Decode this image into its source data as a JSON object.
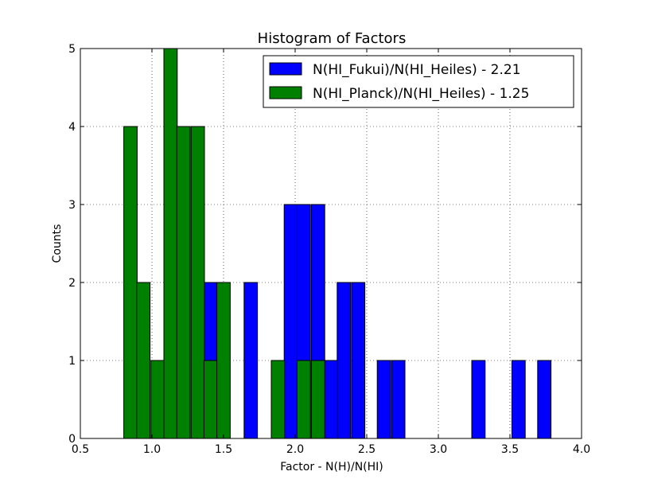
{
  "chart_data": {
    "type": "bar",
    "title": "Histogram of Factors",
    "xlabel": "Factor - N(H)/N(HI)",
    "ylabel": "Counts",
    "xlim": [
      0.5,
      4.0
    ],
    "ylim": [
      0,
      5
    ],
    "xticks": [
      "0.5",
      "1.0",
      "1.5",
      "2.0",
      "2.5",
      "3.0",
      "3.5",
      "4.0"
    ],
    "yticks": [
      "0",
      "1",
      "2",
      "3",
      "4",
      "5"
    ],
    "grid": true,
    "legend_position": "top-right",
    "bin_width": 0.0933,
    "series": [
      {
        "name": "N(HI_Fukui)/N(HI_Heiles) - 2.21",
        "color": "#0000ff",
        "bins": [
          {
            "x": 1.41,
            "count": 2
          },
          {
            "x": 1.69,
            "count": 2
          },
          {
            "x": 1.97,
            "count": 3
          },
          {
            "x": 2.06,
            "count": 3
          },
          {
            "x": 2.16,
            "count": 3
          },
          {
            "x": 2.25,
            "count": 1
          },
          {
            "x": 2.34,
            "count": 2
          },
          {
            "x": 2.44,
            "count": 2
          },
          {
            "x": 2.62,
            "count": 1
          },
          {
            "x": 2.72,
            "count": 1
          },
          {
            "x": 3.28,
            "count": 1
          },
          {
            "x": 3.56,
            "count": 1
          },
          {
            "x": 3.74,
            "count": 1
          }
        ]
      },
      {
        "name": "N(HI_Planck)/N(HI_Heiles) - 1.25",
        "color": "#008000",
        "bins": [
          {
            "x": 0.85,
            "count": 4
          },
          {
            "x": 0.94,
            "count": 2
          },
          {
            "x": 1.04,
            "count": 1
          },
          {
            "x": 1.13,
            "count": 5
          },
          {
            "x": 1.22,
            "count": 4
          },
          {
            "x": 1.32,
            "count": 4
          },
          {
            "x": 1.41,
            "count": 1
          },
          {
            "x": 1.5,
            "count": 2
          },
          {
            "x": 1.88,
            "count": 1
          },
          {
            "x": 2.06,
            "count": 1
          },
          {
            "x": 2.16,
            "count": 1
          }
        ]
      }
    ]
  }
}
